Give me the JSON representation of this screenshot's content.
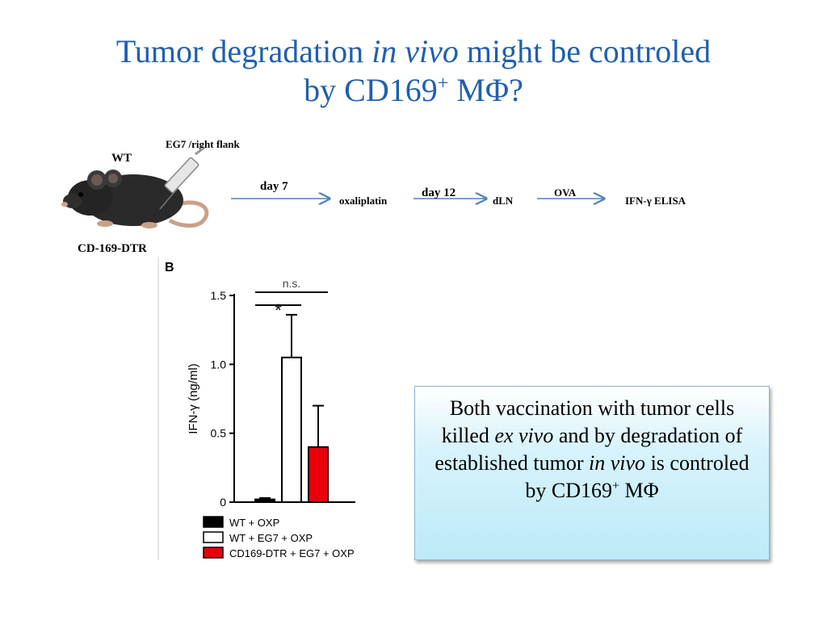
{
  "slide": {
    "title_line1_a": "Tumor degradation ",
    "title_line1_italic": "in vivo",
    "title_line1_b": " might be controled",
    "title_line2_a": "by CD169",
    "title_line2_sup": "+",
    "title_line2_b": " MΦ?"
  },
  "scheme": {
    "injection_label": "EG7 /right flank",
    "wt_label": "WT",
    "dtr_label": "CD-169-DTR",
    "step1_time": "day 7",
    "step1_label": "oxaliplatin",
    "step2_time": "day 12",
    "step2_label": "dLN",
    "step3_time": "OVA",
    "step3_label": "IFN-γ ELISA"
  },
  "panel_label": "B",
  "chart_data": {
    "type": "bar",
    "ylabel": "IFN-γ  (ng/ml)",
    "ylim": [
      0,
      1.5
    ],
    "yticks": [
      "0",
      "0.5",
      "1.0",
      "1.5"
    ],
    "categories": [
      "WT + OXP",
      "WT + EG7 + OXP",
      "CD169-DTR + EG7 + OXP"
    ],
    "values": [
      0.02,
      1.05,
      0.4
    ],
    "errors": [
      0.01,
      0.31,
      0.3
    ],
    "colors": [
      "#000000",
      "#ffffff",
      "#e8000b"
    ],
    "significance": [
      {
        "from": 0,
        "to": 1,
        "label": "*"
      },
      {
        "from": 0,
        "to": 2,
        "label": "n.s."
      }
    ]
  },
  "callout": {
    "part1": "Both vaccination with tumor cells killed ",
    "italic1": "ex vivo",
    "part2": " and by degradation of established tumor ",
    "italic2": "in vivo",
    "part3": " is controled by CD169",
    "sup": "+",
    "part4": " MΦ"
  }
}
